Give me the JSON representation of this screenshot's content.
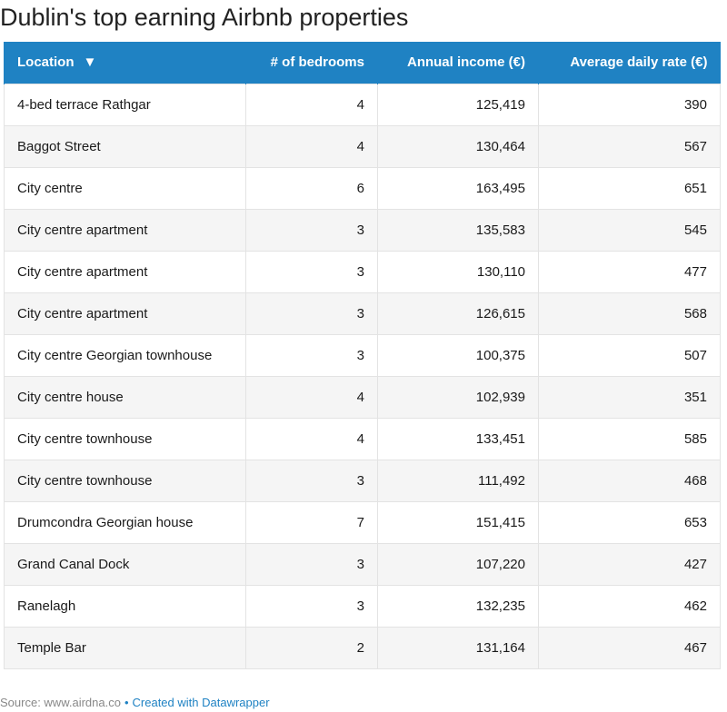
{
  "title": "Dublin's top earning Airbnb properties",
  "colors": {
    "header_bg": "#1f82c3",
    "header_text": "#ffffff",
    "stripe": "#f5f5f5",
    "link": "#1f82c3"
  },
  "icons": {
    "sort": "triangle-down-icon"
  },
  "sort_glyph": "▼",
  "table": {
    "headers": [
      "Location",
      "# of bedrooms",
      "Annual income (€)",
      "Average daily rate (€)"
    ]
  },
  "chart_data": {
    "type": "table",
    "title": "Dublin's top earning Airbnb properties",
    "columns": [
      "Location",
      "# of bedrooms",
      "Annual income (€)",
      "Average daily rate (€)"
    ],
    "rows": [
      [
        "4-bed terrace Rathgar",
        "4",
        "125,419",
        "390"
      ],
      [
        "Baggot Street",
        "4",
        "130,464",
        "567"
      ],
      [
        "City centre",
        "6",
        "163,495",
        "651"
      ],
      [
        "City centre apartment",
        "3",
        "135,583",
        "545"
      ],
      [
        "City centre apartment",
        "3",
        "130,110",
        "477"
      ],
      [
        "City centre apartment",
        "3",
        "126,615",
        "568"
      ],
      [
        "City centre Georgian townhouse",
        "3",
        "100,375",
        "507"
      ],
      [
        "City centre house",
        "4",
        "102,939",
        "351"
      ],
      [
        "City centre townhouse",
        "4",
        "133,451",
        "585"
      ],
      [
        "City centre townhouse",
        "3",
        "111,492",
        "468"
      ],
      [
        "Drumcondra Georgian house",
        "7",
        "151,415",
        "653"
      ],
      [
        "Grand Canal Dock",
        "3",
        "107,220",
        "427"
      ],
      [
        "Ranelagh",
        "3",
        "132,235",
        "462"
      ],
      [
        "Temple Bar",
        "2",
        "131,164",
        "467"
      ]
    ]
  },
  "footer": {
    "source": "Source: www.airdna.co",
    "separator": "•",
    "credit": "Created with Datawrapper"
  }
}
